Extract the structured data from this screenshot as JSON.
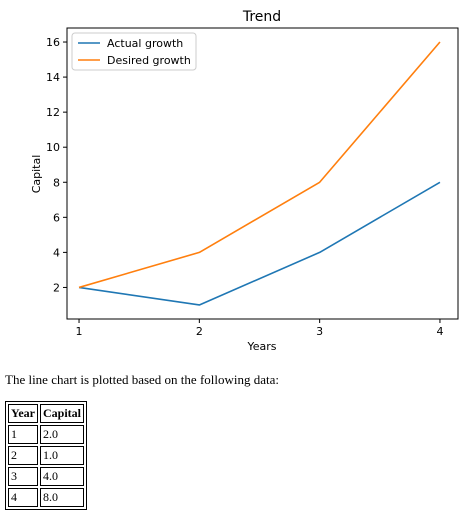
{
  "chart_data": {
    "type": "line",
    "title": "Trend",
    "xlabel": "Years",
    "ylabel": "Capital",
    "x": [
      1,
      2,
      3,
      4
    ],
    "xticks": [
      "1",
      "2",
      "3",
      "4"
    ],
    "yticks": [
      "2",
      "4",
      "6",
      "8",
      "10",
      "12",
      "14",
      "16"
    ],
    "xlim": [
      0.9,
      4.15
    ],
    "ylim": [
      0.2,
      16.8
    ],
    "grid": false,
    "legend_position": "top-left",
    "series": [
      {
        "name": "Actual growth",
        "values": [
          2,
          1,
          4,
          8
        ],
        "color": "#1f77b4"
      },
      {
        "name": "Desired growth",
        "values": [
          2,
          4,
          8,
          16
        ],
        "color": "#ff7f0e"
      }
    ]
  },
  "caption": "The line chart is plotted based on the following data:",
  "table": {
    "headers": [
      "Year",
      "Capital"
    ],
    "rows": [
      [
        "1",
        "2.0"
      ],
      [
        "2",
        "1.0"
      ],
      [
        "3",
        "4.0"
      ],
      [
        "4",
        "8.0"
      ]
    ]
  }
}
